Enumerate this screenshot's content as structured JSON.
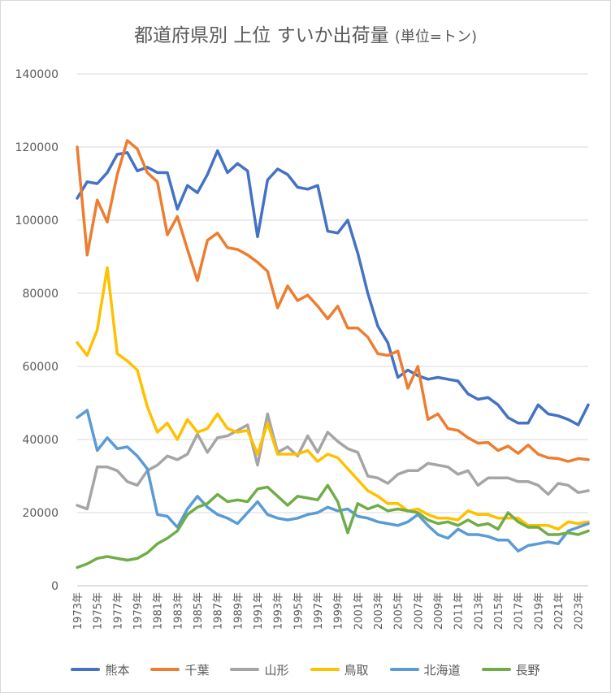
{
  "chart_data": {
    "type": "line",
    "title": "都道府県別 上位 すいか出荷量",
    "unit_label": "(単位=トン)",
    "xlabel": "",
    "ylabel": "",
    "ylim": [
      0,
      140000
    ],
    "y_ticks": [
      "0",
      "20000",
      "40000",
      "60000",
      "80000",
      "100000",
      "120000",
      "140000"
    ],
    "grid": true,
    "legend_position": "bottom",
    "categories": [
      "1973年",
      "1974年",
      "1975年",
      "1976年",
      "1977年",
      "1978年",
      "1979年",
      "1980年",
      "1981年",
      "1982年",
      "1983年",
      "1984年",
      "1985年",
      "1986年",
      "1987年",
      "1988年",
      "1989年",
      "1990年",
      "1991年",
      "1992年",
      "1993年",
      "1994年",
      "1995年",
      "1996年",
      "1997年",
      "1998年",
      "1999年",
      "2000年",
      "2001年",
      "2002年",
      "2003年",
      "2004年",
      "2005年",
      "2006年",
      "2007年",
      "2008年",
      "2009年",
      "2010年",
      "2011年",
      "2012年",
      "2013年",
      "2014年",
      "2015年",
      "2016年",
      "2017年",
      "2018年",
      "2019年",
      "2020年",
      "2021年",
      "2022年",
      "2023年",
      "2024年"
    ],
    "x_tick_labels": [
      "1973年",
      "1975年",
      "1977年",
      "1979年",
      "1981年",
      "1983年",
      "1985年",
      "1987年",
      "1989年",
      "1991年",
      "1993年",
      "1995年",
      "1997年",
      "1999年",
      "2001年",
      "2003年",
      "2005年",
      "2007年",
      "2009年",
      "2011年",
      "2013年",
      "2015年",
      "2017年",
      "2019年",
      "2021年",
      "2023年"
    ],
    "series": [
      {
        "name": "熊本",
        "color": "#4472c4",
        "values": [
          106000,
          110500,
          110000,
          113000,
          118000,
          118500,
          113500,
          114500,
          113000,
          113000,
          103000,
          109500,
          107500,
          112500,
          119000,
          113000,
          115500,
          113500,
          95500,
          111000,
          114000,
          112500,
          109000,
          108500,
          109500,
          97000,
          96500,
          100000,
          91000,
          80000,
          71000,
          66500,
          57000,
          59000,
          57500,
          56500,
          57000,
          56500,
          56000,
          52500,
          51000,
          51500,
          49500,
          46000,
          44500,
          44500,
          49500,
          47000,
          46500,
          45500,
          44000,
          49500
        ]
      },
      {
        "name": "千葉",
        "color": "#ed7d31",
        "values": [
          120000,
          90500,
          105500,
          99500,
          112500,
          121800,
          119500,
          113000,
          110500,
          96000,
          101000,
          92000,
          83500,
          94500,
          96500,
          92500,
          92000,
          90500,
          88500,
          86000,
          76000,
          82000,
          78000,
          79500,
          76500,
          73000,
          76500,
          70500,
          70500,
          68000,
          63500,
          63000,
          64200,
          54000,
          60000,
          45500,
          47000,
          43000,
          42500,
          40500,
          39000,
          39200,
          37000,
          38200,
          36200,
          38500,
          36000,
          35000,
          34800,
          34000,
          34800,
          34500
        ]
      },
      {
        "name": "山形",
        "color": "#a5a5a5",
        "values": [
          22000,
          21000,
          32500,
          32500,
          31500,
          28500,
          27500,
          31500,
          33000,
          35500,
          34500,
          36000,
          41500,
          36500,
          40500,
          41000,
          42500,
          44000,
          33000,
          47000,
          36500,
          38000,
          35500,
          41000,
          36500,
          42000,
          39500,
          37500,
          36500,
          30000,
          29500,
          28000,
          30500,
          31500,
          31500,
          33500,
          33000,
          32500,
          30500,
          31500,
          27500,
          29500,
          29500,
          29500,
          28500,
          28500,
          27500,
          25000,
          28000,
          27500,
          25500,
          26000
        ]
      },
      {
        "name": "鳥取",
        "color": "#ffc000",
        "values": [
          66500,
          63000,
          70000,
          87000,
          63500,
          61500,
          59000,
          49000,
          42000,
          44500,
          40000,
          45500,
          42000,
          43000,
          47000,
          43000,
          42000,
          42500,
          36000,
          44500,
          36000,
          36000,
          36000,
          37000,
          34000,
          36000,
          35000,
          32000,
          29000,
          26000,
          24500,
          22500,
          22500,
          20500,
          21000,
          19500,
          18500,
          18500,
          18000,
          20500,
          19500,
          19500,
          18500,
          18500,
          18500,
          16500,
          16500,
          16500,
          15500,
          17500,
          17000,
          17500
        ]
      },
      {
        "name": "北海道",
        "color": "#5b9bd5",
        "values": [
          46000,
          48000,
          37000,
          40500,
          37500,
          38000,
          35500,
          32000,
          19500,
          19000,
          16000,
          21000,
          24500,
          21500,
          19500,
          18500,
          17000,
          20000,
          23000,
          19500,
          18500,
          18000,
          18500,
          19500,
          20000,
          21500,
          20500,
          21000,
          19000,
          18500,
          17500,
          17000,
          16500,
          17500,
          19500,
          16500,
          14000,
          13000,
          15500,
          14000,
          14000,
          13500,
          12500,
          12500,
          9500,
          11000,
          11500,
          12000,
          11500,
          15000,
          16000,
          17000
        ]
      },
      {
        "name": "長野",
        "color": "#70ad47",
        "values": [
          5000,
          6000,
          7500,
          8000,
          7500,
          7000,
          7500,
          9000,
          11500,
          13000,
          15000,
          19500,
          21500,
          22500,
          25000,
          23000,
          23500,
          23000,
          26500,
          27000,
          24500,
          22000,
          24500,
          24000,
          23500,
          27500,
          23000,
          14500,
          22500,
          21000,
          22000,
          20500,
          21000,
          20500,
          20000,
          18000,
          17000,
          17500,
          16500,
          18000,
          16500,
          17000,
          15500,
          20000,
          17500,
          16000,
          16000,
          14000,
          14000,
          14500,
          14000,
          15000
        ]
      }
    ]
  }
}
